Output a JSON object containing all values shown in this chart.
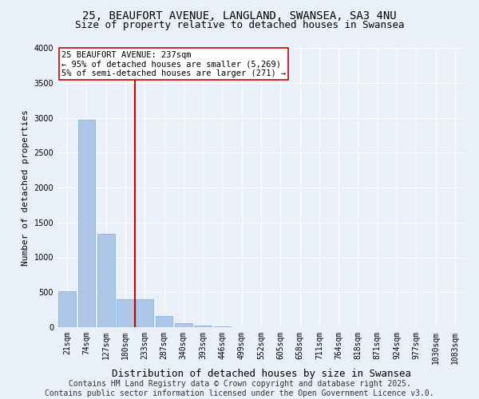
{
  "title": "25, BEAUFORT AVENUE, LANGLAND, SWANSEA, SA3 4NU",
  "subtitle": "Size of property relative to detached houses in Swansea",
  "xlabel": "Distribution of detached houses by size in Swansea",
  "ylabel": "Number of detached properties",
  "categories": [
    "21sqm",
    "74sqm",
    "127sqm",
    "180sqm",
    "233sqm",
    "287sqm",
    "340sqm",
    "393sqm",
    "446sqm",
    "499sqm",
    "552sqm",
    "605sqm",
    "658sqm",
    "711sqm",
    "764sqm",
    "818sqm",
    "871sqm",
    "924sqm",
    "977sqm",
    "1030sqm",
    "1083sqm"
  ],
  "values": [
    510,
    2970,
    1340,
    400,
    400,
    160,
    55,
    20,
    8,
    3,
    1,
    0,
    0,
    0,
    0,
    0,
    0,
    0,
    0,
    0,
    0
  ],
  "bar_color": "#aec6e8",
  "bar_edge_color": "#7aadd4",
  "vline_color": "#cc0000",
  "vline_x": 3.5,
  "annotation_text": "25 BEAUFORT AVENUE: 237sqm\n← 95% of detached houses are smaller (5,269)\n5% of semi-detached houses are larger (271) →",
  "ylim": [
    0,
    4000
  ],
  "yticks": [
    0,
    500,
    1000,
    1500,
    2000,
    2500,
    3000,
    3500,
    4000
  ],
  "background_color": "#eaf0f8",
  "grid_color": "#ffffff",
  "footer_text": "Contains HM Land Registry data © Crown copyright and database right 2025.\nContains public sector information licensed under the Open Government Licence v3.0.",
  "title_fontsize": 10,
  "subtitle_fontsize": 9,
  "xlabel_fontsize": 9,
  "ylabel_fontsize": 8,
  "tick_fontsize": 7,
  "footer_fontsize": 7,
  "annot_fontsize": 7.5
}
